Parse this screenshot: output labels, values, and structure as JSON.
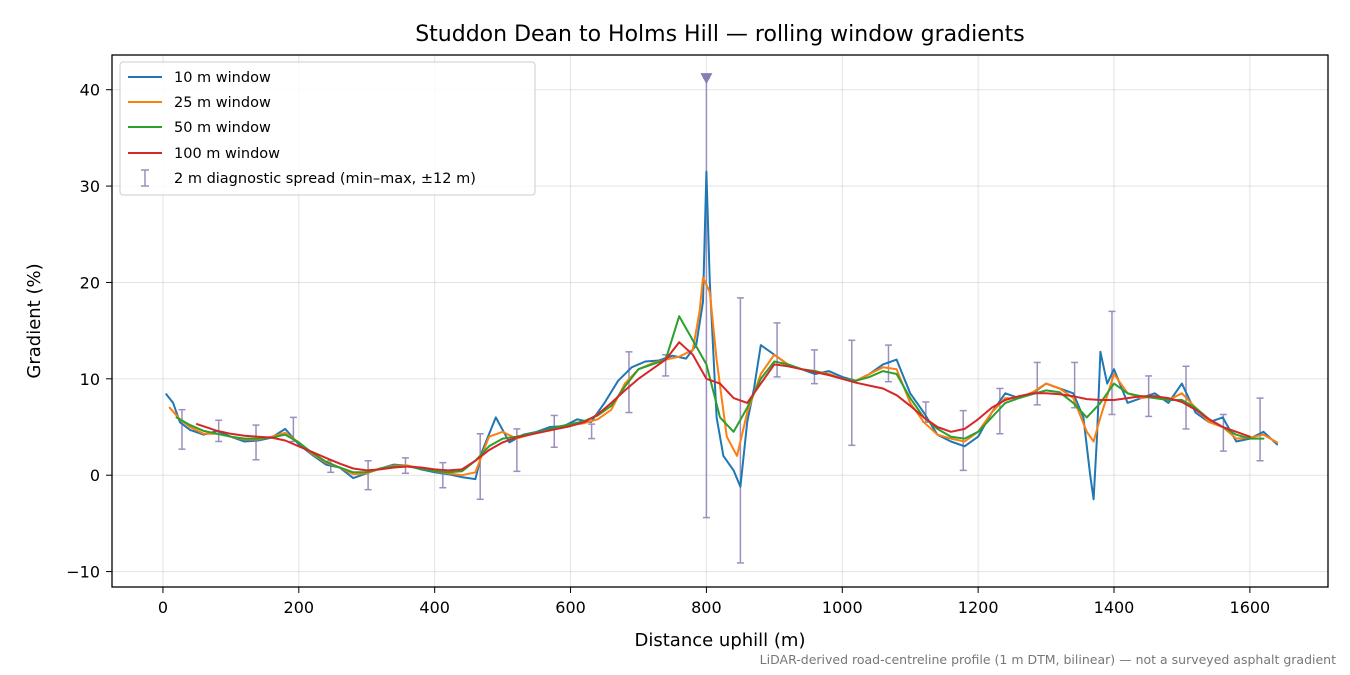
{
  "chart_data": {
    "type": "line",
    "title": "Studdon Dean to Holms Hill — rolling window gradients",
    "xlabel": "Distance uphill (m)",
    "ylabel": "Gradient (%)",
    "xlim": [
      -75,
      1715
    ],
    "ylim": [
      -11.6,
      43.6
    ],
    "xticks": [
      0,
      200,
      400,
      600,
      800,
      1000,
      1200,
      1400,
      1600
    ],
    "yticks": [
      -10,
      0,
      10,
      20,
      30,
      40
    ],
    "ytick_labels": [
      "−10",
      "0",
      "10",
      "20",
      "30",
      "40"
    ],
    "grid": true,
    "legend_position": "upper-left",
    "footnote": "LiDAR-derived road-centreline profile (1 m DTM, bilinear) — not a surveyed asphalt gradient",
    "series": [
      {
        "name": "10 m window",
        "color": "#1f77b4",
        "x": [
          5,
          15,
          25,
          40,
          60,
          80,
          100,
          120,
          140,
          160,
          180,
          200,
          220,
          240,
          260,
          280,
          300,
          320,
          340,
          360,
          380,
          400,
          420,
          440,
          460,
          470,
          490,
          510,
          530,
          550,
          570,
          590,
          610,
          630,
          650,
          670,
          690,
          710,
          730,
          750,
          770,
          785,
          795,
          800,
          805,
          815,
          825,
          840,
          850,
          860,
          870,
          880,
          900,
          920,
          940,
          960,
          980,
          1000,
          1020,
          1040,
          1060,
          1080,
          1100,
          1120,
          1140,
          1160,
          1180,
          1200,
          1220,
          1240,
          1260,
          1280,
          1300,
          1320,
          1340,
          1355,
          1360,
          1365,
          1370,
          1375,
          1380,
          1390,
          1400,
          1420,
          1440,
          1460,
          1480,
          1500,
          1520,
          1540,
          1560,
          1580,
          1600,
          1620,
          1640
        ],
        "y": [
          8.4,
          7.5,
          5.5,
          4.7,
          4.2,
          4.6,
          4.0,
          3.5,
          3.6,
          3.9,
          4.8,
          3.2,
          2.1,
          1.1,
          0.8,
          -0.3,
          0.2,
          0.7,
          1.1,
          1.0,
          0.6,
          0.3,
          0.1,
          -0.2,
          -0.4,
          2.5,
          6.0,
          3.4,
          4.2,
          4.5,
          5.0,
          5.1,
          5.8,
          5.5,
          7.5,
          9.8,
          11.2,
          11.8,
          11.9,
          12.4,
          12.1,
          13.5,
          18.0,
          31.5,
          20.0,
          6.0,
          2.0,
          0.5,
          -1.2,
          5.5,
          9.0,
          13.5,
          12.5,
          11.5,
          11.0,
          10.5,
          10.8,
          10.2,
          9.8,
          10.5,
          11.5,
          12.0,
          8.5,
          6.5,
          4.2,
          3.5,
          3.0,
          4.0,
          6.5,
          8.5,
          8.0,
          8.5,
          9.5,
          9.0,
          8.5,
          6.0,
          3.0,
          0.0,
          -2.5,
          4.0,
          12.8,
          9.5,
          11.0,
          7.5,
          8.0,
          8.5,
          7.5,
          9.5,
          6.5,
          5.5,
          6.0,
          3.5,
          3.8,
          4.5,
          3.2
        ]
      },
      {
        "name": "25 m window",
        "color": "#ff7f0e",
        "x": [
          10,
          25,
          40,
          60,
          80,
          100,
          120,
          140,
          160,
          180,
          200,
          220,
          240,
          260,
          280,
          300,
          320,
          340,
          360,
          380,
          400,
          420,
          440,
          460,
          480,
          500,
          520,
          540,
          560,
          580,
          600,
          620,
          640,
          660,
          680,
          700,
          720,
          740,
          760,
          780,
          790,
          795,
          805,
          815,
          830,
          845,
          860,
          880,
          900,
          920,
          940,
          960,
          980,
          1000,
          1020,
          1040,
          1060,
          1080,
          1100,
          1120,
          1140,
          1160,
          1180,
          1200,
          1220,
          1240,
          1260,
          1280,
          1300,
          1320,
          1340,
          1360,
          1370,
          1380,
          1400,
          1420,
          1440,
          1460,
          1480,
          1500,
          1520,
          1540,
          1560,
          1580,
          1600,
          1620,
          1640
        ],
        "y": [
          7.0,
          5.8,
          5.0,
          4.3,
          4.3,
          4.0,
          3.7,
          3.7,
          4.0,
          4.4,
          3.4,
          2.2,
          1.3,
          0.8,
          0.1,
          0.2,
          0.7,
          1.0,
          1.0,
          0.7,
          0.4,
          0.2,
          0.0,
          0.3,
          4.0,
          4.5,
          3.8,
          4.2,
          4.6,
          4.9,
          5.2,
          5.4,
          5.8,
          6.8,
          9.5,
          11.0,
          11.6,
          12.0,
          12.3,
          13.0,
          17.0,
          20.5,
          19.0,
          12.0,
          4.0,
          2.0,
          6.5,
          10.5,
          12.5,
          11.5,
          11.0,
          10.8,
          10.5,
          10.0,
          9.8,
          10.5,
          11.2,
          11.0,
          7.5,
          5.5,
          4.2,
          3.8,
          3.5,
          4.5,
          6.5,
          8.0,
          8.0,
          8.6,
          9.5,
          9.0,
          8.0,
          4.5,
          3.5,
          6.0,
          10.5,
          8.5,
          8.0,
          8.2,
          7.8,
          8.5,
          7.0,
          5.5,
          5.0,
          3.8,
          3.9,
          4.2,
          3.4
        ]
      },
      {
        "name": "50 m window",
        "color": "#2ca02c",
        "x": [
          20,
          40,
          60,
          80,
          100,
          120,
          140,
          160,
          180,
          200,
          220,
          240,
          260,
          280,
          300,
          320,
          340,
          360,
          380,
          400,
          420,
          440,
          460,
          480,
          500,
          520,
          540,
          560,
          580,
          600,
          620,
          640,
          660,
          680,
          700,
          720,
          740,
          760,
          780,
          800,
          820,
          840,
          860,
          880,
          900,
          920,
          940,
          960,
          980,
          1000,
          1020,
          1040,
          1060,
          1080,
          1100,
          1120,
          1140,
          1160,
          1180,
          1200,
          1220,
          1240,
          1260,
          1280,
          1300,
          1320,
          1340,
          1360,
          1380,
          1400,
          1420,
          1440,
          1460,
          1480,
          1500,
          1520,
          1540,
          1560,
          1580,
          1600,
          1620
        ],
        "y": [
          6.0,
          5.2,
          4.6,
          4.3,
          4.0,
          3.8,
          3.8,
          3.9,
          4.2,
          3.4,
          2.3,
          1.4,
          0.8,
          0.3,
          0.3,
          0.7,
          0.9,
          0.9,
          0.7,
          0.4,
          0.3,
          0.4,
          1.5,
          3.0,
          3.8,
          4.0,
          4.3,
          4.6,
          5.0,
          5.3,
          5.6,
          6.2,
          7.2,
          9.2,
          11.0,
          11.5,
          12.0,
          16.5,
          14.0,
          11.5,
          6.0,
          4.5,
          7.0,
          10.0,
          11.8,
          11.5,
          11.0,
          10.8,
          10.4,
          10.0,
          9.8,
          10.2,
          10.8,
          10.5,
          8.0,
          6.0,
          4.8,
          4.0,
          3.8,
          4.5,
          6.0,
          7.5,
          8.0,
          8.4,
          8.8,
          8.6,
          7.5,
          6.0,
          7.5,
          9.5,
          8.5,
          8.2,
          8.0,
          7.8,
          7.8,
          7.0,
          5.8,
          5.0,
          4.2,
          3.8,
          3.8
        ]
      },
      {
        "name": "100 m window",
        "color": "#d62728",
        "x": [
          50,
          80,
          100,
          120,
          140,
          160,
          180,
          200,
          220,
          240,
          260,
          280,
          300,
          320,
          340,
          360,
          380,
          400,
          420,
          440,
          460,
          480,
          500,
          520,
          540,
          560,
          580,
          600,
          620,
          640,
          660,
          680,
          700,
          720,
          740,
          760,
          780,
          800,
          820,
          840,
          860,
          880,
          900,
          920,
          940,
          960,
          980,
          1000,
          1020,
          1040,
          1060,
          1080,
          1100,
          1120,
          1140,
          1160,
          1180,
          1200,
          1220,
          1240,
          1260,
          1280,
          1300,
          1320,
          1340,
          1360,
          1380,
          1400,
          1420,
          1440,
          1460,
          1480,
          1500,
          1520,
          1540,
          1560,
          1580,
          1600
        ],
        "y": [
          5.3,
          4.6,
          4.3,
          4.1,
          4.0,
          3.9,
          3.6,
          3.0,
          2.4,
          1.8,
          1.2,
          0.7,
          0.5,
          0.6,
          0.8,
          0.9,
          0.8,
          0.6,
          0.5,
          0.6,
          1.5,
          2.6,
          3.4,
          3.9,
          4.2,
          4.5,
          4.8,
          5.1,
          5.5,
          6.3,
          7.5,
          8.8,
          10.0,
          11.0,
          12.0,
          13.8,
          12.5,
          10.0,
          9.5,
          8.0,
          7.5,
          9.5,
          11.5,
          11.3,
          11.0,
          10.7,
          10.4,
          10.0,
          9.6,
          9.3,
          9.0,
          8.3,
          7.2,
          6.0,
          5.0,
          4.5,
          4.8,
          5.8,
          7.0,
          7.8,
          8.2,
          8.5,
          8.5,
          8.4,
          8.2,
          7.9,
          7.8,
          7.8,
          8.0,
          8.2,
          8.2,
          8.0,
          7.6,
          6.8,
          5.8,
          5.0,
          4.5,
          4.0
        ]
      }
    ],
    "error_bars": {
      "name": "2 m diagnostic spread (min–max, ±12 m)",
      "color": "#9b8fbd",
      "points": [
        {
          "x": 28,
          "lo": 2.7,
          "hi": 6.8
        },
        {
          "x": 82,
          "lo": 3.5,
          "hi": 5.7
        },
        {
          "x": 137,
          "lo": 1.6,
          "hi": 5.2
        },
        {
          "x": 192,
          "lo": 3.5,
          "hi": 6.0
        },
        {
          "x": 247,
          "lo": 0.3,
          "hi": 1.5
        },
        {
          "x": 302,
          "lo": -1.5,
          "hi": 1.5
        },
        {
          "x": 357,
          "lo": 0.2,
          "hi": 1.8
        },
        {
          "x": 412,
          "lo": -1.3,
          "hi": 1.3
        },
        {
          "x": 467,
          "lo": -2.5,
          "hi": 4.3
        },
        {
          "x": 521,
          "lo": 0.4,
          "hi": 4.8
        },
        {
          "x": 576,
          "lo": 2.9,
          "hi": 6.2
        },
        {
          "x": 631,
          "lo": 3.8,
          "hi": 5.3
        },
        {
          "x": 686,
          "lo": 6.5,
          "hi": 12.8
        },
        {
          "x": 740,
          "lo": 10.3,
          "hi": 12.5
        },
        {
          "x": 800,
          "lo": -4.4,
          "hi": 41.2
        },
        {
          "x": 850,
          "lo": -9.1,
          "hi": 18.4
        },
        {
          "x": 904,
          "lo": 10.2,
          "hi": 15.8
        },
        {
          "x": 959,
          "lo": 9.5,
          "hi": 13.0
        },
        {
          "x": 1014,
          "lo": 3.1,
          "hi": 14.0
        },
        {
          "x": 1068,
          "lo": 9.7,
          "hi": 13.5
        },
        {
          "x": 1123,
          "lo": 5.5,
          "hi": 7.6
        },
        {
          "x": 1178,
          "lo": 0.5,
          "hi": 6.7
        },
        {
          "x": 1232,
          "lo": 4.3,
          "hi": 9.0
        },
        {
          "x": 1287,
          "lo": 7.3,
          "hi": 11.7
        },
        {
          "x": 1342,
          "lo": 7.0,
          "hi": 11.7
        },
        {
          "x": 1397,
          "lo": 6.3,
          "hi": 17.0
        },
        {
          "x": 1451,
          "lo": 6.1,
          "hi": 10.3
        },
        {
          "x": 1506,
          "lo": 4.8,
          "hi": 11.3
        },
        {
          "x": 1561,
          "lo": 2.5,
          "hi": 6.3
        },
        {
          "x": 1615,
          "lo": 1.5,
          "hi": 8.0
        }
      ],
      "clipped_marker": {
        "x": 800,
        "y": 41.2,
        "shape": "down-triangle"
      }
    }
  }
}
